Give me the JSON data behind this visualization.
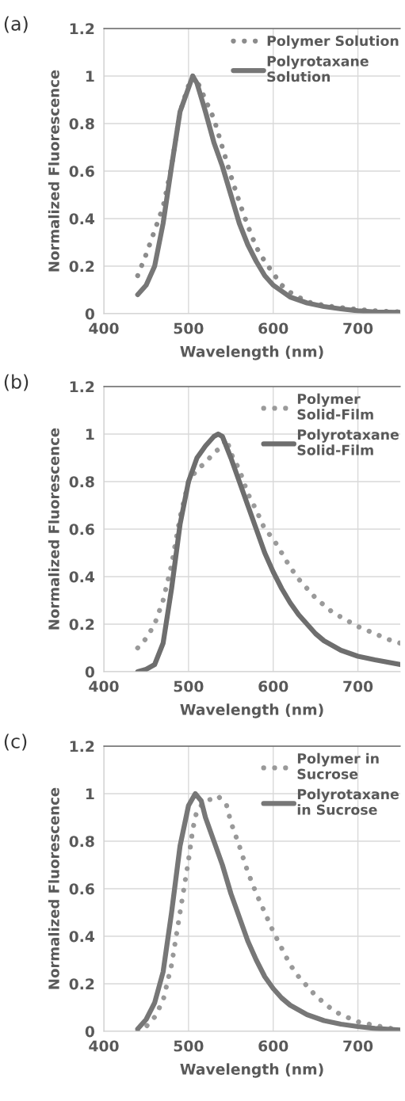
{
  "chart_data": [
    {
      "type": "line",
      "title": "(a)",
      "xlabel": "Wavelength (nm)",
      "ylabel": "Normalized Fluorescence",
      "xlim": [
        400,
        750
      ],
      "xticks": [
        400,
        500,
        600,
        700
      ],
      "ylim": [
        0,
        1.2
      ],
      "yticks": [
        0,
        0.2,
        0.4,
        0.6,
        0.8,
        1,
        1.2
      ],
      "grid": true,
      "legend": "top right",
      "series": [
        {
          "name": "Polymer Solution",
          "color": "#8c8c8c",
          "line_style": "dotted",
          "x": [
            440,
            450,
            460,
            470,
            480,
            490,
            500,
            505,
            510,
            520,
            530,
            540,
            550,
            560,
            570,
            580,
            590,
            600,
            610,
            620,
            640,
            660,
            680,
            700,
            720,
            750
          ],
          "values": [
            0.16,
            0.25,
            0.35,
            0.45,
            0.62,
            0.85,
            0.96,
            1.0,
            0.98,
            0.9,
            0.82,
            0.7,
            0.58,
            0.47,
            0.37,
            0.28,
            0.22,
            0.17,
            0.12,
            0.09,
            0.05,
            0.035,
            0.025,
            0.018,
            0.012,
            0.007
          ]
        },
        {
          "name": "Polyrotaxane\nSolution",
          "color": "#777777",
          "line_style": "solid",
          "x": [
            440,
            450,
            460,
            470,
            480,
            490,
            500,
            505,
            510,
            520,
            530,
            540,
            550,
            560,
            570,
            580,
            590,
            600,
            620,
            640,
            660,
            680,
            700,
            720,
            750
          ],
          "values": [
            0.08,
            0.12,
            0.2,
            0.38,
            0.62,
            0.85,
            0.95,
            1.0,
            0.97,
            0.85,
            0.72,
            0.62,
            0.5,
            0.38,
            0.29,
            0.22,
            0.16,
            0.12,
            0.07,
            0.045,
            0.03,
            0.02,
            0.012,
            0.007,
            0.005
          ]
        }
      ]
    },
    {
      "type": "line",
      "title": "(b)",
      "xlabel": "Wavelength (nm)",
      "ylabel": "Normalized Fluorescence",
      "xlim": [
        400,
        750
      ],
      "xticks": [
        400,
        500,
        600,
        700
      ],
      "ylim": [
        0,
        1.2
      ],
      "yticks": [
        0,
        0.2,
        0.4,
        0.6,
        0.8,
        1,
        1.2
      ],
      "grid": true,
      "legend": "top right",
      "series": [
        {
          "name": "Polymer\nSolid-Film",
          "color": "#9a9a9a",
          "line_style": "dotted",
          "x": [
            440,
            450,
            460,
            470,
            480,
            490,
            500,
            510,
            520,
            530,
            540,
            545,
            550,
            560,
            570,
            580,
            590,
            600,
            610,
            620,
            630,
            640,
            650,
            660,
            670,
            680,
            690,
            700,
            720,
            740,
            750
          ],
          "values": [
            0.1,
            0.14,
            0.2,
            0.3,
            0.45,
            0.65,
            0.8,
            0.85,
            0.88,
            0.92,
            0.95,
            0.98,
            0.92,
            0.85,
            0.75,
            0.68,
            0.6,
            0.56,
            0.5,
            0.44,
            0.39,
            0.35,
            0.31,
            0.28,
            0.25,
            0.23,
            0.21,
            0.19,
            0.16,
            0.13,
            0.12
          ]
        },
        {
          "name": "Polyrotaxane\nSolid-Film",
          "color": "#6e6e6e",
          "line_style": "solid",
          "x": [
            440,
            450,
            460,
            470,
            480,
            490,
            500,
            510,
            520,
            530,
            535,
            540,
            550,
            560,
            570,
            580,
            590,
            600,
            610,
            620,
            630,
            640,
            650,
            660,
            680,
            700,
            720,
            750
          ],
          "values": [
            0.0,
            0.01,
            0.03,
            0.12,
            0.35,
            0.62,
            0.8,
            0.9,
            0.95,
            0.99,
            1.0,
            0.99,
            0.9,
            0.8,
            0.7,
            0.6,
            0.5,
            0.42,
            0.35,
            0.29,
            0.24,
            0.2,
            0.16,
            0.13,
            0.09,
            0.065,
            0.05,
            0.03
          ]
        }
      ]
    },
    {
      "type": "line",
      "title": "(c)",
      "xlabel": "Wavelength (nm)",
      "ylabel": "Normalized Fluorescence",
      "xlim": [
        400,
        750
      ],
      "xticks": [
        400,
        500,
        600,
        700
      ],
      "ylim": [
        0,
        1.2
      ],
      "yticks": [
        0,
        0.2,
        0.4,
        0.6,
        0.8,
        1,
        1.2
      ],
      "grid": true,
      "legend": "top right",
      "series": [
        {
          "name": "Polymer in\nSucrose",
          "color": "#999999",
          "line_style": "dotted",
          "x": [
            440,
            450,
            460,
            470,
            480,
            490,
            500,
            505,
            510,
            520,
            530,
            535,
            545,
            550,
            560,
            570,
            580,
            590,
            600,
            610,
            620,
            630,
            640,
            650,
            660,
            670,
            680,
            700,
            720,
            750
          ],
          "values": [
            0.0,
            0.02,
            0.06,
            0.13,
            0.28,
            0.5,
            0.72,
            0.85,
            0.93,
            0.97,
            0.98,
            0.99,
            0.95,
            0.88,
            0.78,
            0.67,
            0.58,
            0.5,
            0.42,
            0.35,
            0.28,
            0.23,
            0.19,
            0.15,
            0.12,
            0.09,
            0.07,
            0.04,
            0.025,
            0.005
          ]
        },
        {
          "name": "Polyrotaxane\nin Sucrose",
          "color": "#777777",
          "line_style": "solid",
          "x": [
            440,
            450,
            460,
            470,
            480,
            490,
            500,
            508,
            515,
            520,
            530,
            540,
            550,
            560,
            570,
            580,
            590,
            600,
            610,
            620,
            640,
            660,
            680,
            700,
            720,
            750
          ],
          "values": [
            0.01,
            0.05,
            0.12,
            0.25,
            0.5,
            0.78,
            0.95,
            1.0,
            0.97,
            0.9,
            0.8,
            0.7,
            0.58,
            0.48,
            0.38,
            0.3,
            0.23,
            0.18,
            0.14,
            0.11,
            0.07,
            0.045,
            0.03,
            0.02,
            0.012,
            0.005
          ]
        }
      ]
    }
  ]
}
